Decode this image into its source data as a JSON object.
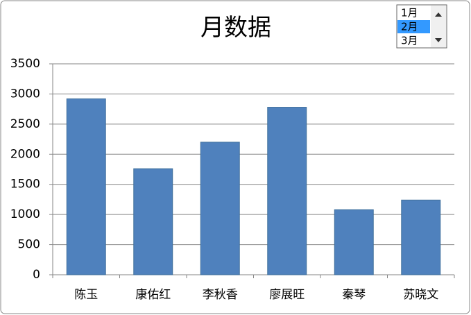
{
  "chart_data": {
    "type": "bar",
    "title": "月数据",
    "categories": [
      "陈玉",
      "康佑红",
      "李秋香",
      "廖展旺",
      "秦琴",
      "苏晓文"
    ],
    "values": [
      2920,
      1760,
      2200,
      2780,
      1080,
      1240
    ],
    "color": "#4f81bd",
    "ylim": [
      0,
      3500
    ],
    "yticks": [
      0,
      500,
      1000,
      1500,
      2000,
      2500,
      3000,
      3500
    ],
    "grid": true
  },
  "listbox": {
    "items": [
      "1月",
      "2月",
      "3月"
    ],
    "selected": 1
  }
}
